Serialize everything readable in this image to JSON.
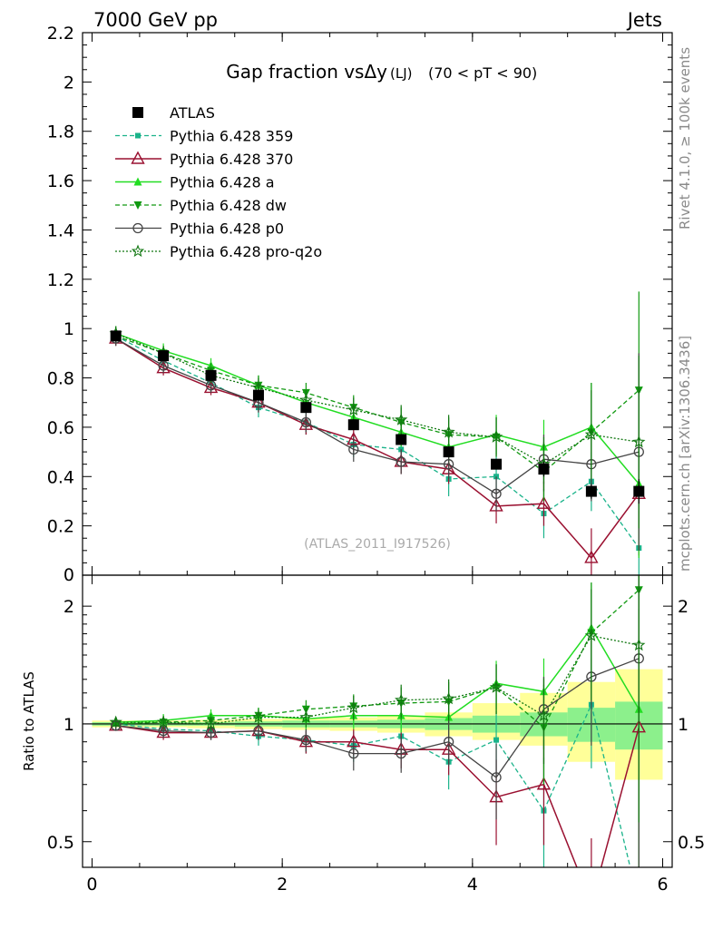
{
  "header": {
    "left": "7000 GeV pp",
    "right": "Jets"
  },
  "side_labels": {
    "rivet": "Rivet 4.1.0, ≥ 100k events",
    "mcplots": "mcplots.cern.ch [arXiv:1306.3436]"
  },
  "watermark": "(ATLAS_2011_I917526)",
  "title": {
    "main": "Gap fraction vsΔy",
    "sub": "(LJ)",
    "range": "(70 < pT <  90)"
  },
  "colors": {
    "atlas": "#000000",
    "p359": "#1ab38a",
    "p370": "#9a1030",
    "pa": "#22dd22",
    "pdw": "#119911",
    "pp0": "#444444",
    "pq2o": "#117711",
    "band_yellow": "#ffff99",
    "band_green": "#8cf08c"
  },
  "chart_data": [
    {
      "type": "line",
      "name": "main",
      "title": "Gap fraction vsΔy (LJ) (70 < pT <  90)",
      "xlabel": "",
      "ylabel": "",
      "xlim": [
        -0.1,
        6.1
      ],
      "ylim": [
        0,
        2.2
      ],
      "yticks": [
        "0.2",
        "0.4",
        "0.6",
        "0.8",
        "1",
        "1.2",
        "1.4",
        "1.6",
        "1.8",
        "2",
        "2.2"
      ],
      "y_bottom_label": "0",
      "x": [
        0.25,
        0.75,
        1.25,
        1.75,
        2.25,
        2.75,
        3.25,
        3.75,
        4.25,
        4.75,
        5.25,
        5.75
      ],
      "series": [
        {
          "name": "ATLAS",
          "key": "atlas",
          "values": [
            0.97,
            0.89,
            0.81,
            0.73,
            0.68,
            0.61,
            0.55,
            0.5,
            0.45,
            0.43,
            0.34,
            0.34
          ],
          "errors": [
            0.02,
            0.02,
            0.02,
            0.02,
            0.02,
            0.02,
            0.02,
            0.02,
            0.02,
            0.03,
            0.03,
            0.05
          ]
        },
        {
          "name": "Pythia 6.428 359",
          "key": "p359",
          "values": [
            0.97,
            0.87,
            0.78,
            0.68,
            0.62,
            0.53,
            0.51,
            0.39,
            0.4,
            0.25,
            0.38,
            0.11
          ],
          "errors": [
            0.03,
            0.03,
            0.04,
            0.04,
            0.05,
            0.05,
            0.06,
            0.07,
            0.08,
            0.1,
            0.12,
            0.15
          ]
        },
        {
          "name": "Pythia 6.428 370",
          "key": "p370",
          "values": [
            0.96,
            0.84,
            0.76,
            0.7,
            0.61,
            0.55,
            0.46,
            0.43,
            0.28,
            0.29,
            0.07,
            0.33
          ],
          "errors": [
            0.03,
            0.03,
            0.03,
            0.04,
            0.04,
            0.05,
            0.05,
            0.06,
            0.07,
            0.09,
            0.12,
            0.25
          ]
        },
        {
          "name": "Pythia 6.428 a",
          "key": "pa",
          "values": [
            0.98,
            0.91,
            0.85,
            0.77,
            0.7,
            0.64,
            0.58,
            0.52,
            0.57,
            0.52,
            0.6,
            0.37
          ],
          "errors": [
            0.03,
            0.03,
            0.03,
            0.04,
            0.04,
            0.05,
            0.06,
            0.07,
            0.08,
            0.11,
            0.18,
            0.3
          ]
        },
        {
          "name": "Pythia 6.428 dw",
          "key": "pdw",
          "values": [
            0.97,
            0.9,
            0.83,
            0.77,
            0.74,
            0.68,
            0.62,
            0.57,
            0.56,
            0.42,
            0.58,
            0.75
          ],
          "errors": [
            0.03,
            0.03,
            0.03,
            0.04,
            0.04,
            0.05,
            0.06,
            0.07,
            0.08,
            0.12,
            0.2,
            0.4
          ]
        },
        {
          "name": "Pythia 6.428 p0",
          "key": "pp0",
          "values": [
            0.96,
            0.85,
            0.77,
            0.7,
            0.62,
            0.51,
            0.46,
            0.45,
            0.33,
            0.47,
            0.45,
            0.5
          ],
          "errors": [
            0.03,
            0.03,
            0.03,
            0.04,
            0.04,
            0.05,
            0.05,
            0.06,
            0.07,
            0.1,
            0.15,
            0.4
          ]
        },
        {
          "name": "Pythia 6.428 pro-q2o",
          "key": "pq2o",
          "values": [
            0.98,
            0.9,
            0.81,
            0.76,
            0.71,
            0.67,
            0.63,
            0.58,
            0.56,
            0.45,
            0.57,
            0.54
          ],
          "errors": [
            0.03,
            0.03,
            0.03,
            0.04,
            0.04,
            0.05,
            0.06,
            0.07,
            0.08,
            0.11,
            0.18,
            0.35
          ]
        }
      ]
    },
    {
      "type": "line",
      "name": "ratio",
      "title": "",
      "xlabel": "",
      "ylabel": "Ratio to ATLAS",
      "xlim": [
        -0.1,
        6.1
      ],
      "ylim": [
        0.43,
        2.4
      ],
      "scale": "log",
      "xticks": [
        "0",
        "2",
        "4",
        "6"
      ],
      "yticks": [
        "0.5",
        "1",
        "2"
      ],
      "x": [
        0.25,
        0.75,
        1.25,
        1.75,
        2.25,
        2.75,
        3.25,
        3.75,
        4.25,
        4.75,
        5.25,
        5.75
      ],
      "band_yellow": {
        "lo": [
          0.98,
          0.98,
          0.975,
          0.97,
          0.965,
          0.96,
          0.95,
          0.93,
          0.91,
          0.88,
          0.8,
          0.72
        ],
        "hi": [
          1.02,
          1.02,
          1.025,
          1.03,
          1.035,
          1.04,
          1.05,
          1.07,
          1.13,
          1.2,
          1.28,
          1.38
        ]
      },
      "band_green": {
        "lo": [
          0.99,
          0.99,
          0.99,
          0.985,
          0.98,
          0.98,
          0.975,
          0.965,
          0.95,
          0.93,
          0.9,
          0.86
        ],
        "hi": [
          1.01,
          1.01,
          1.01,
          1.015,
          1.02,
          1.02,
          1.025,
          1.035,
          1.05,
          1.07,
          1.1,
          1.14
        ]
      },
      "series": [
        {
          "key": "p359",
          "values": [
            1.0,
            0.97,
            0.96,
            0.93,
            0.91,
            0.88,
            0.93,
            0.8,
            0.91,
            0.6,
            1.12,
            0.33
          ],
          "errors": [
            0.03,
            0.04,
            0.05,
            0.05,
            0.07,
            0.08,
            0.1,
            0.12,
            0.17,
            0.22,
            0.35,
            0.4
          ]
        },
        {
          "key": "p370",
          "values": [
            0.99,
            0.95,
            0.95,
            0.96,
            0.9,
            0.9,
            0.86,
            0.86,
            0.65,
            0.7,
            0.21,
            0.98
          ],
          "errors": [
            0.03,
            0.04,
            0.04,
            0.05,
            0.06,
            0.07,
            0.09,
            0.12,
            0.16,
            0.21,
            0.3,
            0.7
          ]
        },
        {
          "key": "pa",
          "values": [
            1.01,
            1.02,
            1.05,
            1.05,
            1.03,
            1.05,
            1.05,
            1.04,
            1.27,
            1.21,
            1.76,
            1.09
          ],
          "errors": [
            0.03,
            0.04,
            0.04,
            0.05,
            0.06,
            0.08,
            0.1,
            0.14,
            0.18,
            0.26,
            0.53,
            0.88
          ]
        },
        {
          "key": "pdw",
          "values": [
            1.0,
            1.01,
            1.02,
            1.05,
            1.09,
            1.11,
            1.13,
            1.14,
            1.24,
            0.98,
            1.71,
            2.2
          ],
          "errors": [
            0.03,
            0.04,
            0.04,
            0.05,
            0.06,
            0.08,
            0.11,
            0.14,
            0.18,
            0.28,
            0.59,
            1.18
          ]
        },
        {
          "key": "pp0",
          "values": [
            0.99,
            0.96,
            0.95,
            0.96,
            0.91,
            0.84,
            0.84,
            0.9,
            0.73,
            1.09,
            1.32,
            1.47
          ],
          "errors": [
            0.03,
            0.04,
            0.04,
            0.05,
            0.06,
            0.08,
            0.09,
            0.12,
            0.16,
            0.23,
            0.44,
            1.18
          ]
        },
        {
          "key": "pq2o",
          "values": [
            1.01,
            1.01,
            1.0,
            1.04,
            1.04,
            1.1,
            1.15,
            1.16,
            1.24,
            1.05,
            1.68,
            1.59
          ],
          "errors": [
            0.03,
            0.04,
            0.04,
            0.05,
            0.06,
            0.08,
            0.11,
            0.14,
            0.18,
            0.26,
            0.53,
            1.03
          ]
        }
      ]
    }
  ]
}
